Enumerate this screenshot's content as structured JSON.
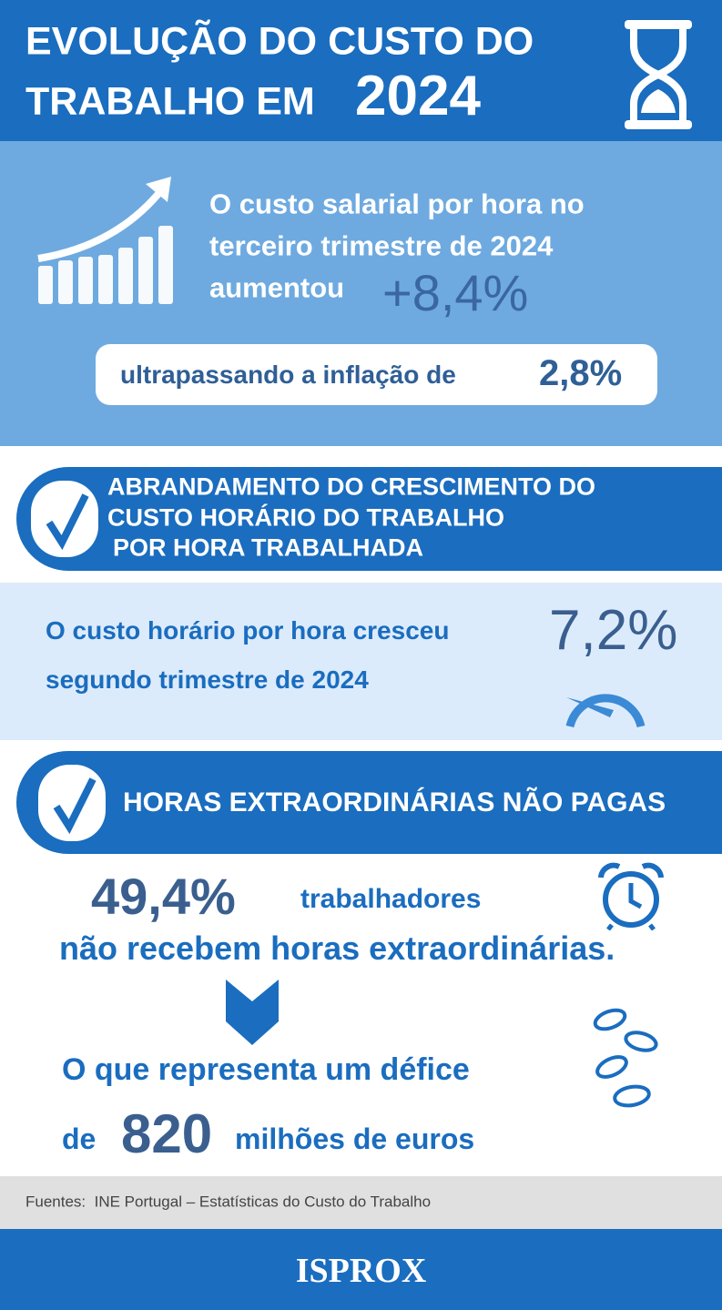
{
  "header": {
    "title_line1": "EVOLUÇÃO DO CUSTO DO",
    "title_line2": "TRABALHO EM",
    "year": "2024"
  },
  "salary": {
    "line1": "O custo salarial por hora no",
    "line2": "terceiro trimestre de 2024",
    "line3": "aumentou",
    "value": "+8,4%",
    "inflation_text": "ultrapassando a inflação de",
    "inflation_value": "2,8%"
  },
  "banner1": {
    "line1": "ABRANDAMENTO DO CRESCIMENTO DO",
    "line2": "CUSTO HORÁRIO DO TRABALHO",
    "line3": "POR HORA TRABALHADA"
  },
  "hourly": {
    "line1": "O custo horário por hora cresceu",
    "line2": "segundo trimestre de 2024",
    "value": "7,2%"
  },
  "banner2": {
    "title": "HORAS EXTRAORDINÁRIAS NÃO PAGAS"
  },
  "overtime": {
    "percent": "49,4%",
    "workers": "trabalhadores",
    "line2": "não recebem horas extraordinárias.",
    "deficit_line1": "O que representa um défice",
    "deficit_prefix": "de",
    "deficit_value": "820",
    "deficit_suffix": "milhões de euros"
  },
  "footer": {
    "source": "Fuentes:  INE Portugal – Estatísticas do Custo do Trabalho",
    "brand": "ISPROX"
  }
}
